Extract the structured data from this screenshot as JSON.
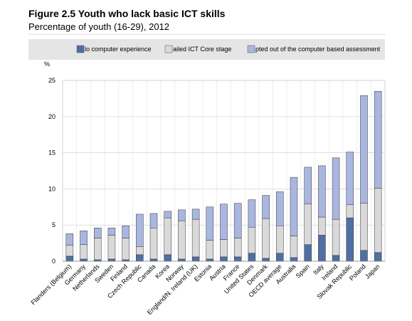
{
  "chart_data": {
    "type": "stacked-bar",
    "title": "Figure 2.5 Youth who lack basic ICT skills",
    "subtitle": "Percentage of youth (16-29), 2012",
    "y_label": "%",
    "categories": [
      "Flanders (Belgium)",
      "Germany",
      "Netherlands",
      "Sweden",
      "Finland",
      "Czech Republic",
      "Canada",
      "Korea",
      "Norway",
      "England/N. Ireland (UK)",
      "Estonia",
      "Austria",
      "France",
      "United States",
      "Denmark",
      "OECD average",
      "Australia",
      "Spain",
      "Italy",
      "Ireland",
      "Slovak Republic",
      "Poland",
      "Japan"
    ],
    "series": [
      {
        "name": "lo computer experience",
        "color": "#4f6fa3",
        "values": [
          0.7,
          0.3,
          0.2,
          0.3,
          0.2,
          0.9,
          0.3,
          0.9,
          0.3,
          0.6,
          0.3,
          0.6,
          0.6,
          1.1,
          0.4,
          1.1,
          0.5,
          2.3,
          3.6,
          0.8,
          6.0,
          1.5,
          1.2
        ]
      },
      {
        "name": "ailed ICT Core stage",
        "color": "#d9d9d9",
        "values": [
          1.5,
          2.0,
          3.0,
          3.3,
          3.0,
          1.1,
          4.3,
          5.1,
          5.3,
          5.2,
          2.6,
          2.4,
          2.6,
          3.6,
          5.5,
          3.8,
          3.0,
          5.6,
          2.5,
          5.0,
          1.8,
          6.5,
          8.9
        ]
      },
      {
        "name": "pted out of the computer based assessment",
        "color": "#a9b7e0",
        "values": [
          1.6,
          1.9,
          1.4,
          1.0,
          1.7,
          4.5,
          2.0,
          0.9,
          1.5,
          1.4,
          4.6,
          4.9,
          4.8,
          3.8,
          3.2,
          4.7,
          8.1,
          5.1,
          7.1,
          8.5,
          7.3,
          14.9,
          13.4
        ]
      }
    ],
    "ylim": [
      0,
      25
    ],
    "yticks": [
      0,
      5,
      10,
      15,
      20,
      25
    ],
    "grid": true
  }
}
